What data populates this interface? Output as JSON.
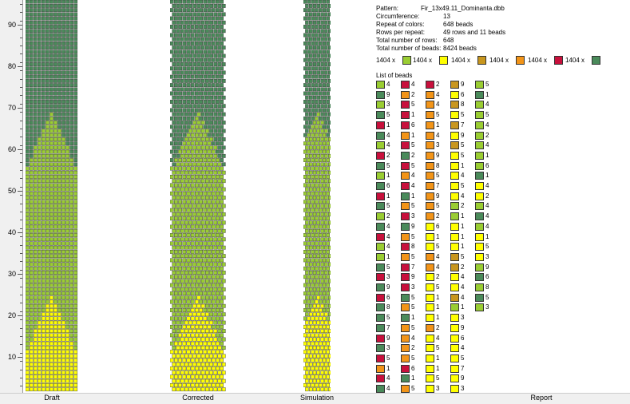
{
  "colors": {
    "c1": "#9acd32",
    "c2": "#ffff00",
    "c3": "#c8961e",
    "c4": "#f29418",
    "c5": "#c8103c",
    "c6": "#4a8a5a"
  },
  "ruler": {
    "labels": [
      "90",
      "80",
      "70",
      "60",
      "50",
      "40",
      "30",
      "20",
      "10"
    ]
  },
  "panels": {
    "draft": "Draft",
    "corrected": "Corrected",
    "simulation": "Simulation",
    "report": "Report"
  },
  "info": {
    "pattern_label": "Pattern:",
    "pattern_value": "Fir_13x49.11_Dominanta.dbb",
    "circ_label": "Circumference:",
    "circ_value": "13",
    "repeat_label": "Repeat of colors:",
    "repeat_value": "648 beads",
    "rows_label": "Rows per repeat:",
    "rows_value": "49 rows and 11 beads",
    "total_rows_label": "Total number of rows:",
    "total_rows_value": "648",
    "total_beads_label": "Total number of beads:",
    "total_beads_value": "8424 beads"
  },
  "color_counts": [
    {
      "label": "1404 x",
      "color": "c1"
    },
    {
      "label": "1404 x",
      "color": "c2"
    },
    {
      "label": "1404 x",
      "color": "c3"
    },
    {
      "label": "1404 x",
      "color": "c4"
    },
    {
      "label": "1404 x",
      "color": "c5"
    },
    {
      "label": "1404 x",
      "color": "c6"
    }
  ],
  "bead_list_title": "List of beads",
  "bead_columns": [
    [
      [
        "c1",
        "4"
      ],
      [
        "c6",
        "9"
      ],
      [
        "c1",
        "3"
      ],
      [
        "c6",
        "5"
      ],
      [
        "c5",
        "1"
      ],
      [
        "c6",
        "4"
      ],
      [
        "c1",
        "4"
      ],
      [
        "c5",
        "2"
      ],
      [
        "c6",
        "5"
      ],
      [
        "c1",
        "1"
      ],
      [
        "c6",
        "6"
      ],
      [
        "c5",
        "1"
      ],
      [
        "c6",
        "5"
      ],
      [
        "c1",
        "2"
      ],
      [
        "c6",
        "4"
      ],
      [
        "c5",
        "4"
      ],
      [
        "c1",
        "4"
      ],
      [
        "c1",
        "1"
      ],
      [
        "c6",
        "5"
      ],
      [
        "c5",
        "3"
      ],
      [
        "c6",
        "9"
      ],
      [
        "c5",
        "6"
      ],
      [
        "c6",
        "8"
      ],
      [
        "c6",
        "5"
      ],
      [
        "c6",
        "7"
      ],
      [
        "c5",
        "9"
      ],
      [
        "c6",
        "3"
      ],
      [
        "c5",
        "5"
      ],
      [
        "c4",
        "1"
      ],
      [
        "c5",
        "4"
      ],
      [
        "c6",
        "4"
      ]
    ],
    [
      [
        "c5",
        "4"
      ],
      [
        "c4",
        "2"
      ],
      [
        "c5",
        "5"
      ],
      [
        "c5",
        "1"
      ],
      [
        "c5",
        "6"
      ],
      [
        "c4",
        "1"
      ],
      [
        "c5",
        "5"
      ],
      [
        "c6",
        "2"
      ],
      [
        "c5",
        "5"
      ],
      [
        "c4",
        "4"
      ],
      [
        "c5",
        "4"
      ],
      [
        "c6",
        "1"
      ],
      [
        "c4",
        "5"
      ],
      [
        "c5",
        "3"
      ],
      [
        "c6",
        "9"
      ],
      [
        "c4",
        "5"
      ],
      [
        "c5",
        "8"
      ],
      [
        "c4",
        "5"
      ],
      [
        "c5",
        "7"
      ],
      [
        "c5",
        "9"
      ],
      [
        "c5",
        "3"
      ],
      [
        "c6",
        "5"
      ],
      [
        "c4",
        "5"
      ],
      [
        "c6",
        "1"
      ],
      [
        "c4",
        "5"
      ],
      [
        "c4",
        "4"
      ],
      [
        "c4",
        "2"
      ],
      [
        "c4",
        "5"
      ],
      [
        "c5",
        "6"
      ],
      [
        "c6",
        "1"
      ],
      [
        "c4",
        "5"
      ]
    ],
    [
      [
        "c5",
        "2"
      ],
      [
        "c4",
        "4"
      ],
      [
        "c4",
        "4"
      ],
      [
        "c4",
        "5"
      ],
      [
        "c4",
        "1"
      ],
      [
        "c4",
        "4"
      ],
      [
        "c4",
        "3"
      ],
      [
        "c4",
        "9"
      ],
      [
        "c4",
        "8"
      ],
      [
        "c4",
        "5"
      ],
      [
        "c4",
        "7"
      ],
      [
        "c4",
        "9"
      ],
      [
        "c4",
        "5"
      ],
      [
        "c4",
        "2"
      ],
      [
        "c2",
        "6"
      ],
      [
        "c2",
        "1"
      ],
      [
        "c2",
        "5"
      ],
      [
        "c4",
        "4"
      ],
      [
        "c4",
        "4"
      ],
      [
        "c2",
        "2"
      ],
      [
        "c2",
        "5"
      ],
      [
        "c2",
        "1"
      ],
      [
        "c2",
        "1"
      ],
      [
        "c2",
        "1"
      ],
      [
        "c4",
        "2"
      ],
      [
        "c2",
        "4"
      ],
      [
        "c2",
        "5"
      ],
      [
        "c2",
        "1"
      ],
      [
        "c2",
        "1"
      ],
      [
        "c2",
        "5"
      ],
      [
        "c2",
        "3"
      ]
    ],
    [
      [
        "c3",
        "9"
      ],
      [
        "c2",
        "6"
      ],
      [
        "c3",
        "8"
      ],
      [
        "c2",
        "5"
      ],
      [
        "c3",
        "7"
      ],
      [
        "c2",
        "9"
      ],
      [
        "c3",
        "5"
      ],
      [
        "c2",
        "5"
      ],
      [
        "c2",
        "1"
      ],
      [
        "c2",
        "4"
      ],
      [
        "c2",
        "5"
      ],
      [
        "c2",
        "4"
      ],
      [
        "c1",
        "2"
      ],
      [
        "c1",
        "1"
      ],
      [
        "c2",
        "1"
      ],
      [
        "c2",
        "1"
      ],
      [
        "c2",
        "1"
      ],
      [
        "c3",
        "5"
      ],
      [
        "c3",
        "2"
      ],
      [
        "c2",
        "4"
      ],
      [
        "c2",
        "4"
      ],
      [
        "c3",
        "4"
      ],
      [
        "c1",
        "1"
      ],
      [
        "c2",
        "3"
      ],
      [
        "c2",
        "9"
      ],
      [
        "c2",
        "6"
      ],
      [
        "c2",
        "4"
      ],
      [
        "c2",
        "5"
      ],
      [
        "c2",
        "7"
      ],
      [
        "c2",
        "9"
      ],
      [
        "c2",
        "3"
      ]
    ],
    [
      [
        "c1",
        "5"
      ],
      [
        "c6",
        "1"
      ],
      [
        "c1",
        "4"
      ],
      [
        "c1",
        "5"
      ],
      [
        "c1",
        "4"
      ],
      [
        "c1",
        "2"
      ],
      [
        "c1",
        "4"
      ],
      [
        "c1",
        "1"
      ],
      [
        "c1",
        "6"
      ],
      [
        "c6",
        "1"
      ],
      [
        "c2",
        "4"
      ],
      [
        "c2",
        "2"
      ],
      [
        "c1",
        "4"
      ],
      [
        "c6",
        "4"
      ],
      [
        "c1",
        "4"
      ],
      [
        "c2",
        "1"
      ],
      [
        "c2",
        "5"
      ],
      [
        "c2",
        "3"
      ],
      [
        "c1",
        "9"
      ],
      [
        "c6",
        "6"
      ],
      [
        "c1",
        "8"
      ],
      [
        "c6",
        "5"
      ],
      [
        "c1",
        "3"
      ]
    ]
  ]
}
